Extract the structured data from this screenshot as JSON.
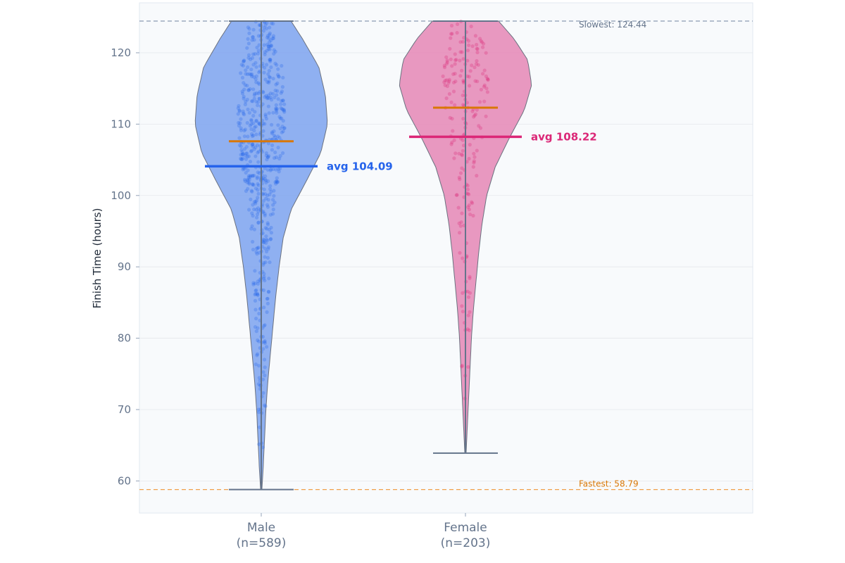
{
  "chart_data": {
    "type": "violin",
    "title": "",
    "xlabel": "",
    "ylabel": "Finish Time (hours)",
    "ylim": [
      55.5,
      127
    ],
    "yticks": [
      60,
      70,
      80,
      90,
      100,
      110,
      120
    ],
    "grid": true,
    "colors": {
      "male": "#2563eb",
      "male_fill": "#7da2ee",
      "female": "#db2777",
      "female_fill": "#e586b5",
      "median": "#d97706",
      "slowest_line": "#94a3b8",
      "fastest_line": "#f0a04b",
      "panel_bg": "#f8fafc"
    },
    "series": [
      {
        "key": "male",
        "category": "Male",
        "count_label": "(n=589)",
        "n": 589,
        "min": 58.79,
        "max": 124.44,
        "median": 107.6,
        "mean": 104.09,
        "avg_label": "avg 104.09",
        "density": [
          [
            58.79,
            0.01
          ],
          [
            62,
            0.03
          ],
          [
            66,
            0.05
          ],
          [
            70,
            0.07
          ],
          [
            74,
            0.1
          ],
          [
            78,
            0.14
          ],
          [
            82,
            0.18
          ],
          [
            86,
            0.22
          ],
          [
            90,
            0.27
          ],
          [
            94,
            0.33
          ],
          [
            98,
            0.45
          ],
          [
            102,
            0.68
          ],
          [
            106,
            0.9
          ],
          [
            110,
            1.0
          ],
          [
            114,
            0.97
          ],
          [
            118,
            0.87
          ],
          [
            122,
            0.62
          ],
          [
            124.44,
            0.45
          ]
        ]
      },
      {
        "key": "female",
        "category": "Female",
        "count_label": "(n=203)",
        "n": 203,
        "min": 63.9,
        "max": 124.44,
        "median": 112.3,
        "mean": 108.22,
        "avg_label": "avg 108.22",
        "density": [
          [
            63.9,
            0.01
          ],
          [
            68,
            0.03
          ],
          [
            72,
            0.05
          ],
          [
            76,
            0.07
          ],
          [
            80,
            0.09
          ],
          [
            84,
            0.12
          ],
          [
            88,
            0.16
          ],
          [
            92,
            0.2
          ],
          [
            96,
            0.25
          ],
          [
            100,
            0.32
          ],
          [
            104,
            0.45
          ],
          [
            108,
            0.66
          ],
          [
            112,
            0.89
          ],
          [
            115.5,
            1.0
          ],
          [
            119,
            0.94
          ],
          [
            122,
            0.73
          ],
          [
            124.44,
            0.5
          ]
        ]
      }
    ],
    "annotations": {
      "slowest": {
        "value": 124.44,
        "label": "Slowest: 124.44"
      },
      "fastest": {
        "value": 58.79,
        "label": "Fastest: 58.79"
      }
    }
  }
}
